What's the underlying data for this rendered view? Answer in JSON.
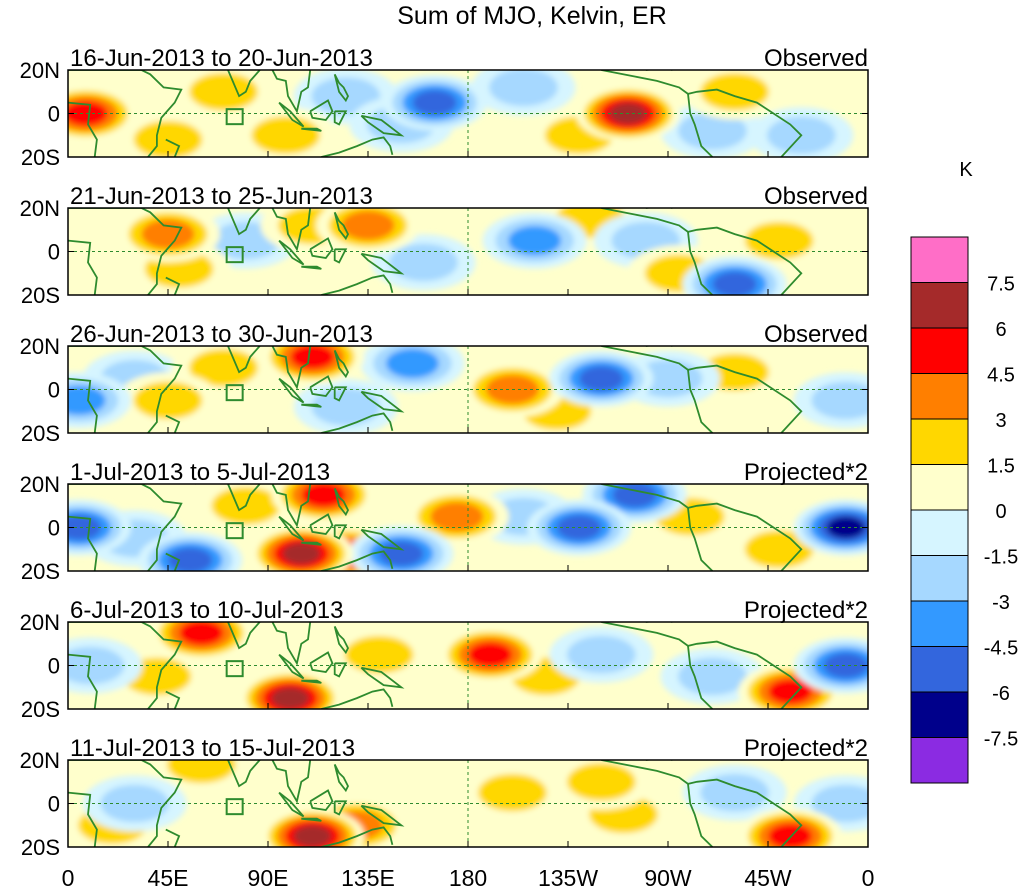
{
  "title": "Sum of MJO, Kelvin, ER",
  "lat_labels": [
    "20N",
    "0",
    "20S"
  ],
  "lon_labels": [
    "0",
    "45E",
    "90E",
    "135E",
    "180",
    "135W",
    "90W",
    "45W",
    "0"
  ],
  "lon_positions_deg": [
    0,
    45,
    90,
    135,
    180,
    225,
    270,
    315,
    360
  ],
  "lat_range_deg": [
    -20,
    20
  ],
  "panels": [
    {
      "dates": "16-Jun-2013 to 20-Jun-2013",
      "type": "Observed"
    },
    {
      "dates": "21-Jun-2013 to 25-Jun-2013",
      "type": "Observed"
    },
    {
      "dates": "26-Jun-2013 to 30-Jun-2013",
      "type": "Observed"
    },
    {
      "dates": "1-Jul-2013 to 5-Jul-2013",
      "type": "Projected*2"
    },
    {
      "dates": "6-Jul-2013 to 10-Jul-2013",
      "type": "Projected*2"
    },
    {
      "dates": "11-Jul-2013 to 15-Jul-2013",
      "type": "Projected*2"
    }
  ],
  "colorbar": {
    "unit": "K",
    "labels": [
      "7.5",
      "6",
      "4.5",
      "3",
      "1.5",
      "0",
      "-1.5",
      "-3",
      "-4.5",
      "-6",
      "-7.5"
    ],
    "colors": [
      "#ff6ec7",
      "#a52a2a",
      "#ff0000",
      "#ff7f00",
      "#ffd700",
      "#ffffcc",
      "#d6f5ff",
      "#a6d8ff",
      "#3399ff",
      "#3366dd",
      "#00008b",
      "#8b2be2"
    ]
  },
  "colors": {
    "coast": "#2e8b2e",
    "frame": "#000000",
    "equator": "#2e8b2e"
  },
  "anomalies": [
    [
      {
        "lon": 8,
        "lat": 0,
        "v": 6
      },
      {
        "lon": 45,
        "lat": -12,
        "v": 3
      },
      {
        "lon": 70,
        "lat": 10,
        "v": 3
      },
      {
        "lon": 98,
        "lat": -10,
        "v": 3
      },
      {
        "lon": 125,
        "lat": 8,
        "v": -2
      },
      {
        "lon": 150,
        "lat": -5,
        "v": -3
      },
      {
        "lon": 165,
        "lat": 5,
        "v": -6
      },
      {
        "lon": 205,
        "lat": 12,
        "v": -3
      },
      {
        "lon": 230,
        "lat": -10,
        "v": 3
      },
      {
        "lon": 252,
        "lat": 0,
        "v": 7
      },
      {
        "lon": 290,
        "lat": -8,
        "v": -3
      },
      {
        "lon": 300,
        "lat": 10,
        "v": 3
      },
      {
        "lon": 330,
        "lat": -10,
        "v": -2
      }
    ],
    [
      {
        "lon": 45,
        "lat": 8,
        "v": 4
      },
      {
        "lon": 50,
        "lat": -8,
        "v": 3
      },
      {
        "lon": 80,
        "lat": 5,
        "v": -2
      },
      {
        "lon": 110,
        "lat": 12,
        "v": 2
      },
      {
        "lon": 135,
        "lat": 12,
        "v": 4
      },
      {
        "lon": 160,
        "lat": -5,
        "v": -2
      },
      {
        "lon": 210,
        "lat": 5,
        "v": -4
      },
      {
        "lon": 235,
        "lat": 15,
        "v": 3
      },
      {
        "lon": 260,
        "lat": 5,
        "v": -3
      },
      {
        "lon": 275,
        "lat": -10,
        "v": 3
      },
      {
        "lon": 300,
        "lat": -15,
        "v": -6
      },
      {
        "lon": 320,
        "lat": 5,
        "v": 3
      }
    ],
    [
      {
        "lon": 5,
        "lat": -5,
        "v": -4
      },
      {
        "lon": 30,
        "lat": 5,
        "v": -2
      },
      {
        "lon": 45,
        "lat": -5,
        "v": 3
      },
      {
        "lon": 70,
        "lat": 10,
        "v": 2
      },
      {
        "lon": 110,
        "lat": 15,
        "v": 5
      },
      {
        "lon": 125,
        "lat": -8,
        "v": -3
      },
      {
        "lon": 155,
        "lat": 12,
        "v": -4
      },
      {
        "lon": 200,
        "lat": 0,
        "v": 4
      },
      {
        "lon": 220,
        "lat": -10,
        "v": 3
      },
      {
        "lon": 240,
        "lat": 5,
        "v": -6
      },
      {
        "lon": 270,
        "lat": 5,
        "v": -3
      },
      {
        "lon": 300,
        "lat": 8,
        "v": 2
      },
      {
        "lon": 350,
        "lat": -5,
        "v": -3
      }
    ],
    [
      {
        "lon": 5,
        "lat": 0,
        "v": -5
      },
      {
        "lon": 30,
        "lat": -5,
        "v": -2
      },
      {
        "lon": 55,
        "lat": -15,
        "v": -6
      },
      {
        "lon": 80,
        "lat": 10,
        "v": 2
      },
      {
        "lon": 105,
        "lat": -12,
        "v": 8
      },
      {
        "lon": 125,
        "lat": -12,
        "v": 5
      },
      {
        "lon": 115,
        "lat": 15,
        "v": 5
      },
      {
        "lon": 150,
        "lat": -12,
        "v": -5
      },
      {
        "lon": 175,
        "lat": 5,
        "v": 4
      },
      {
        "lon": 205,
        "lat": 5,
        "v": -3
      },
      {
        "lon": 230,
        "lat": 0,
        "v": -6
      },
      {
        "lon": 255,
        "lat": 15,
        "v": -5
      },
      {
        "lon": 280,
        "lat": 5,
        "v": 3
      },
      {
        "lon": 320,
        "lat": -10,
        "v": 3
      },
      {
        "lon": 350,
        "lat": 0,
        "v": -8
      }
    ],
    [
      {
        "lon": 10,
        "lat": 0,
        "v": -3
      },
      {
        "lon": 40,
        "lat": -5,
        "v": 2
      },
      {
        "lon": 60,
        "lat": 15,
        "v": 5
      },
      {
        "lon": 100,
        "lat": -15,
        "v": 9
      },
      {
        "lon": 140,
        "lat": 5,
        "v": 3
      },
      {
        "lon": 190,
        "lat": 5,
        "v": 5
      },
      {
        "lon": 215,
        "lat": -5,
        "v": 3
      },
      {
        "lon": 240,
        "lat": 5,
        "v": -3
      },
      {
        "lon": 290,
        "lat": -5,
        "v": -2
      },
      {
        "lon": 325,
        "lat": -12,
        "v": 5
      },
      {
        "lon": 350,
        "lat": 0,
        "v": -5
      }
    ],
    [
      {
        "lon": 20,
        "lat": -10,
        "v": 2
      },
      {
        "lon": 60,
        "lat": 18,
        "v": 3
      },
      {
        "lon": 30,
        "lat": 0,
        "v": -3
      },
      {
        "lon": 110,
        "lat": -15,
        "v": 9
      },
      {
        "lon": 130,
        "lat": -10,
        "v": 4
      },
      {
        "lon": 200,
        "lat": 5,
        "v": 3
      },
      {
        "lon": 240,
        "lat": 10,
        "v": 3
      },
      {
        "lon": 250,
        "lat": -5,
        "v": 2
      },
      {
        "lon": 300,
        "lat": 5,
        "v": -3
      },
      {
        "lon": 325,
        "lat": -15,
        "v": 5
      },
      {
        "lon": 350,
        "lat": 0,
        "v": -3
      }
    ]
  ]
}
